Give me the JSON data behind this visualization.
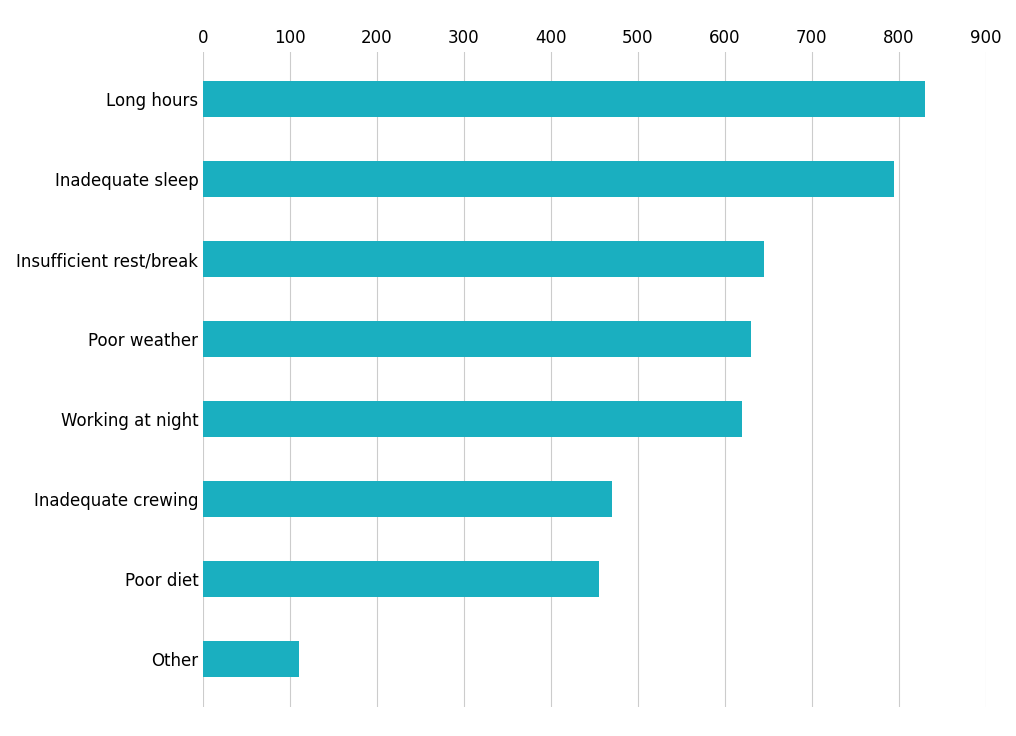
{
  "categories": [
    "Long hours",
    "Inadequate sleep",
    "Insufficient rest/break",
    "Poor weather",
    "Working at night",
    "Inadequate crewing",
    "Poor diet",
    "Other"
  ],
  "values": [
    830,
    795,
    645,
    630,
    620,
    470,
    455,
    110
  ],
  "bar_color": "#1AAFC0",
  "xlim": [
    0,
    900
  ],
  "xticks": [
    0,
    100,
    200,
    300,
    400,
    500,
    600,
    700,
    800,
    900
  ],
  "background_color": "#ffffff",
  "grid_color": "#cccccc",
  "tick_fontsize": 12,
  "label_fontsize": 12,
  "bar_height": 0.45
}
